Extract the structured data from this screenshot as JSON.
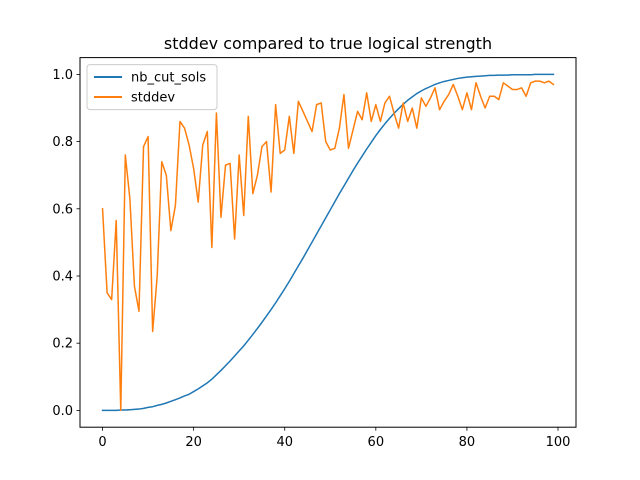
{
  "chart_data": {
    "type": "line",
    "title": "stddev compared to true logical strength",
    "xlabel": "",
    "ylabel": "",
    "xlim": [
      -4.95,
      103.95
    ],
    "ylim": [
      -0.05,
      1.05
    ],
    "x_ticks": [
      0,
      20,
      40,
      60,
      80,
      100
    ],
    "y_ticks": [
      0.0,
      0.2,
      0.4,
      0.6,
      0.8,
      1.0
    ],
    "x_tick_labels": [
      "0",
      "20",
      "40",
      "60",
      "80",
      "100"
    ],
    "y_tick_labels": [
      "0.0",
      "0.2",
      "0.4",
      "0.6",
      "0.8",
      "1.0"
    ],
    "grid": false,
    "legend": "top-left",
    "x": [
      0,
      1,
      2,
      3,
      4,
      5,
      6,
      7,
      8,
      9,
      10,
      11,
      12,
      13,
      14,
      15,
      16,
      17,
      18,
      19,
      20,
      21,
      22,
      23,
      24,
      25,
      26,
      27,
      28,
      29,
      30,
      31,
      32,
      33,
      34,
      35,
      36,
      37,
      38,
      39,
      40,
      41,
      42,
      43,
      44,
      45,
      46,
      47,
      48,
      49,
      50,
      51,
      52,
      53,
      54,
      55,
      56,
      57,
      58,
      59,
      60,
      61,
      62,
      63,
      64,
      65,
      66,
      67,
      68,
      69,
      70,
      71,
      72,
      73,
      74,
      75,
      76,
      77,
      78,
      79,
      80,
      81,
      82,
      83,
      84,
      85,
      86,
      87,
      88,
      89,
      90,
      91,
      92,
      93,
      94,
      95,
      96,
      97,
      98,
      99
    ],
    "series": [
      {
        "name": "nb_cut_sols",
        "color": "#1f77b4",
        "values": [
          0.0,
          0.0,
          0.0,
          0.0,
          0.001,
          0.001,
          0.002,
          0.003,
          0.004,
          0.006,
          0.009,
          0.011,
          0.015,
          0.018,
          0.022,
          0.027,
          0.032,
          0.037,
          0.043,
          0.048,
          0.056,
          0.064,
          0.073,
          0.082,
          0.093,
          0.106,
          0.119,
          0.133,
          0.147,
          0.162,
          0.177,
          0.192,
          0.209,
          0.226,
          0.244,
          0.262,
          0.281,
          0.3,
          0.32,
          0.341,
          0.362,
          0.384,
          0.407,
          0.43,
          0.453,
          0.477,
          0.501,
          0.525,
          0.549,
          0.573,
          0.597,
          0.621,
          0.645,
          0.668,
          0.691,
          0.714,
          0.736,
          0.757,
          0.778,
          0.798,
          0.818,
          0.836,
          0.853,
          0.869,
          0.884,
          0.898,
          0.911,
          0.923,
          0.933,
          0.943,
          0.951,
          0.958,
          0.964,
          0.97,
          0.975,
          0.979,
          0.982,
          0.985,
          0.988,
          0.99,
          0.992,
          0.993,
          0.994,
          0.995,
          0.996,
          0.997,
          0.997,
          0.998,
          0.998,
          0.998,
          0.999,
          0.999,
          0.999,
          0.999,
          0.999,
          1.0,
          1.0,
          1.0,
          1.0,
          1.0
        ]
      },
      {
        "name": "stddev",
        "color": "#ff7f0e",
        "values": [
          0.6,
          0.35,
          0.33,
          0.565,
          0.0,
          0.76,
          0.63,
          0.37,
          0.295,
          0.785,
          0.815,
          0.235,
          0.4,
          0.74,
          0.7,
          0.535,
          0.61,
          0.86,
          0.84,
          0.79,
          0.72,
          0.62,
          0.79,
          0.83,
          0.485,
          0.885,
          0.575,
          0.73,
          0.735,
          0.51,
          0.76,
          0.58,
          0.875,
          0.645,
          0.7,
          0.785,
          0.8,
          0.65,
          0.91,
          0.765,
          0.775,
          0.875,
          0.765,
          0.92,
          0.89,
          0.86,
          0.83,
          0.91,
          0.915,
          0.8,
          0.775,
          0.78,
          0.84,
          0.94,
          0.78,
          0.835,
          0.89,
          0.865,
          0.945,
          0.86,
          0.91,
          0.86,
          0.915,
          0.935,
          0.885,
          0.84,
          0.915,
          0.86,
          0.9,
          0.84,
          0.93,
          0.905,
          0.93,
          0.96,
          0.895,
          0.92,
          0.94,
          0.97,
          0.935,
          0.895,
          0.945,
          0.895,
          0.975,
          0.935,
          0.9,
          0.935,
          0.935,
          0.925,
          0.975,
          0.965,
          0.955,
          0.955,
          0.96,
          0.935,
          0.975,
          0.98,
          0.98,
          0.975,
          0.98,
          0.97
        ]
      }
    ]
  }
}
